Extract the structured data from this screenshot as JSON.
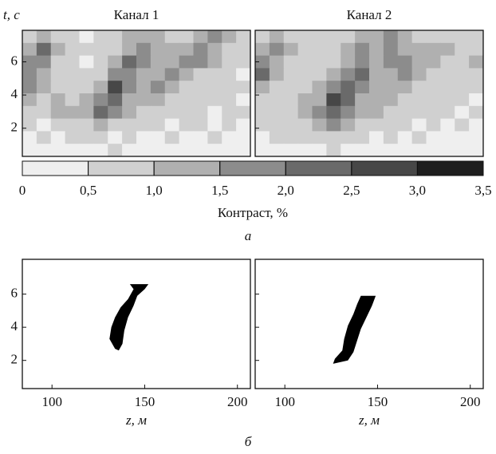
{
  "chart_data": [
    {
      "type": "heatmap",
      "title": "Канал 1",
      "ylabel": "t, с",
      "xlim": [
        84,
        207
      ],
      "ylim": [
        0.3,
        7.9
      ],
      "yticks": [
        2,
        4,
        6
      ],
      "values": [
        [
          0.8,
          1.2,
          0.6,
          0.5,
          0.4,
          0.5,
          0.6,
          1.0,
          1.4,
          1.2,
          0.8,
          0.9,
          1.3,
          1.5,
          1.0,
          0.6
        ],
        [
          1.0,
          2.0,
          1.0,
          0.6,
          0.5,
          0.6,
          0.8,
          1.2,
          1.6,
          1.3,
          1.0,
          1.4,
          1.8,
          1.4,
          0.8,
          0.5
        ],
        [
          1.5,
          1.8,
          0.8,
          0.5,
          0.4,
          0.5,
          1.0,
          2.2,
          1.8,
          1.2,
          1.3,
          1.6,
          1.5,
          1.0,
          0.7,
          0.6
        ],
        [
          1.9,
          1.2,
          0.6,
          0.5,
          0.6,
          0.8,
          1.5,
          1.8,
          1.4,
          1.4,
          1.6,
          1.2,
          0.8,
          0.6,
          0.5,
          0.4
        ],
        [
          1.6,
          1.0,
          0.8,
          0.6,
          0.8,
          1.2,
          2.6,
          1.6,
          1.2,
          1.5,
          1.1,
          0.8,
          0.7,
          0.5,
          0.8,
          0.5
        ],
        [
          1.0,
          0.7,
          1.1,
          0.9,
          1.0,
          1.8,
          2.4,
          1.2,
          1.3,
          1.0,
          0.8,
          0.6,
          0.5,
          0.6,
          0.5,
          0.4
        ],
        [
          0.6,
          0.8,
          1.0,
          1.2,
          1.4,
          2.0,
          1.6,
          1.0,
          0.9,
          0.6,
          0.5,
          0.5,
          0.6,
          0.4,
          0.5,
          0.5
        ],
        [
          0.5,
          0.4,
          0.6,
          0.8,
          0.9,
          1.1,
          0.8,
          0.6,
          0.5,
          0.6,
          0.4,
          0.5,
          0.5,
          0.4,
          0.6,
          0.4
        ],
        [
          0.4,
          0.5,
          0.4,
          0.5,
          0.6,
          0.5,
          0.4,
          0.5,
          0.4,
          0.3,
          0.5,
          0.4,
          0.3,
          0.5,
          0.4,
          0.3
        ],
        [
          0.3,
          0.4,
          0.3,
          0.4,
          0.3,
          0.4,
          0.5,
          0.3,
          0.4,
          0.3,
          0.3,
          0.4,
          0.3,
          0.3,
          0.4,
          0.3
        ]
      ]
    },
    {
      "type": "heatmap",
      "title": "Канал 2",
      "xlim": [
        84,
        207
      ],
      "ylim": [
        0.3,
        7.9
      ],
      "yticks": [
        2,
        4,
        6
      ],
      "values": [
        [
          0.8,
          1.3,
          0.8,
          0.5,
          0.5,
          0.6,
          0.8,
          1.2,
          1.3,
          1.6,
          1.2,
          0.8,
          0.7,
          0.9,
          0.8,
          0.6
        ],
        [
          1.2,
          1.6,
          1.0,
          0.6,
          0.5,
          0.6,
          1.0,
          1.6,
          1.4,
          1.5,
          1.4,
          1.0,
          1.1,
          1.0,
          0.7,
          0.8
        ],
        [
          1.8,
          1.2,
          0.7,
          0.5,
          0.5,
          0.8,
          1.4,
          1.8,
          1.4,
          1.9,
          1.6,
          1.2,
          1.0,
          0.8,
          0.6,
          1.0
        ],
        [
          2.0,
          1.0,
          0.6,
          0.7,
          0.8,
          1.0,
          1.8,
          2.2,
          1.4,
          1.2,
          1.6,
          1.4,
          0.8,
          0.6,
          0.5,
          0.7
        ],
        [
          1.4,
          0.9,
          0.8,
          0.8,
          1.0,
          1.6,
          2.2,
          1.6,
          1.3,
          1.4,
          1.0,
          0.8,
          0.6,
          0.5,
          0.6,
          0.5
        ],
        [
          0.9,
          0.7,
          0.9,
          1.0,
          1.4,
          2.6,
          2.0,
          1.2,
          1.2,
          1.0,
          0.7,
          0.6,
          0.5,
          0.6,
          0.5,
          0.4
        ],
        [
          0.6,
          0.8,
          0.9,
          1.2,
          1.6,
          2.4,
          1.6,
          1.0,
          1.0,
          0.7,
          0.6,
          0.5,
          0.6,
          0.5,
          0.4,
          0.5
        ],
        [
          0.5,
          0.6,
          0.7,
          0.9,
          1.4,
          1.8,
          1.1,
          0.7,
          0.6,
          0.5,
          0.5,
          0.4,
          0.5,
          0.4,
          0.5,
          0.4
        ],
        [
          0.4,
          0.5,
          0.5,
          0.6,
          0.7,
          0.8,
          0.6,
          0.5,
          0.4,
          0.5,
          0.4,
          0.5,
          0.4,
          0.3,
          0.4,
          0.3
        ],
        [
          0.3,
          0.4,
          0.3,
          0.4,
          0.4,
          0.5,
          0.4,
          0.3,
          0.4,
          0.3,
          0.4,
          0.3,
          0.3,
          0.4,
          0.3,
          0.3
        ]
      ]
    },
    {
      "type": "colorbar",
      "title": "Контраст, %",
      "ticks": [
        0,
        {
          "value": 0.5,
          "label": "0,5"
        },
        {
          "value": 1,
          "label": "1,0"
        },
        {
          "value": 1.5,
          "label": "1,5"
        },
        {
          "value": 2,
          "label": "2,0"
        },
        {
          "value": 2.5,
          "label": "2,5"
        },
        {
          "value": 3,
          "label": "3,0"
        },
        {
          "value": 3.5,
          "label": "3,5"
        }
      ],
      "colors": [
        "#efefef",
        "#d0d0d0",
        "#b0b0b0",
        "#8c8c8c",
        "#6a6a6a",
        "#474747",
        "#1e1e1e"
      ]
    },
    {
      "type": "mask",
      "xlabel": "z, м",
      "color": "#000000",
      "xlim": [
        84,
        207
      ],
      "ylim": [
        0.3,
        8.1
      ],
      "xticks": [
        100,
        150,
        200
      ],
      "yticks": [
        2,
        4,
        6
      ],
      "x": [
        142,
        152,
        150,
        146,
        144,
        141,
        139,
        138,
        136,
        134,
        131,
        132,
        134,
        137,
        141,
        144
      ],
      "y": [
        6.6,
        6.6,
        6.3,
        5.9,
        5.3,
        4.6,
        3.8,
        3.0,
        2.6,
        2.7,
        3.3,
        4.0,
        4.6,
        5.2,
        5.7,
        6.3
      ]
    },
    {
      "type": "mask",
      "xlabel": "z, м",
      "color": "#000000",
      "xlim": [
        84,
        207
      ],
      "ylim": [
        0.3,
        8.1
      ],
      "xticks": [
        100,
        150,
        200
      ],
      "yticks": [
        2,
        4,
        6
      ],
      "x": [
        141,
        149,
        147,
        144,
        141,
        139,
        137,
        134,
        126,
        127,
        131,
        132,
        134,
        137,
        139
      ],
      "y": [
        5.9,
        5.9,
        5.3,
        4.6,
        3.9,
        3.2,
        2.5,
        2.0,
        1.8,
        2.1,
        2.6,
        3.3,
        4.1,
        4.8,
        5.4
      ]
    }
  ],
  "captions": [
    "а",
    "б"
  ]
}
